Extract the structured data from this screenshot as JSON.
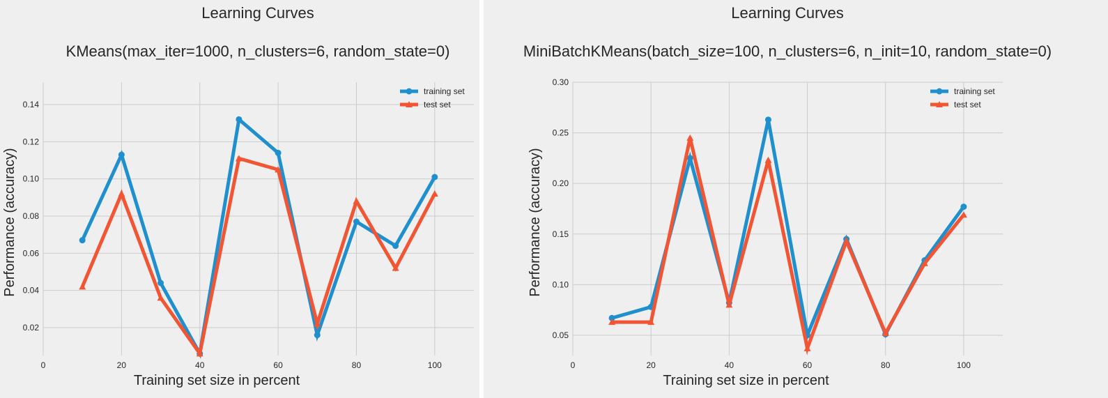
{
  "colors": {
    "panel_bg": "#efefef",
    "grid": "#cbcbcb",
    "text": "#262626",
    "training": "#1f8fce",
    "test": "#f25533"
  },
  "chart_data": [
    {
      "type": "line",
      "title": "Learning Curves",
      "subtitle": "KMeans(max_iter=1000, n_clusters=6, random_state=0)",
      "xlabel": "Training set size in percent",
      "ylabel": "Performance (accuracy)",
      "xlim": [
        0,
        110
      ],
      "ylim": [
        0.005,
        0.152
      ],
      "xticks": [
        0,
        20,
        40,
        60,
        80,
        100
      ],
      "yticks": [
        0.02,
        0.04,
        0.06,
        0.08,
        0.1,
        0.12,
        0.14
      ],
      "ytick_labels": [
        "0.02",
        "0.04",
        "0.06",
        "0.08",
        "0.10",
        "0.12",
        "0.14"
      ],
      "grid": true,
      "legend": "top-right",
      "x": [
        10,
        20,
        30,
        40,
        50,
        60,
        70,
        80,
        90,
        100
      ],
      "series": [
        {
          "name": "training set",
          "color": "#1f8fce",
          "marker": "circle",
          "values": [
            0.067,
            0.113,
            0.044,
            0.006,
            0.132,
            0.114,
            0.016,
            0.077,
            0.064,
            0.101
          ]
        },
        {
          "name": "test set",
          "color": "#f25533",
          "marker": "triangle",
          "values": [
            0.042,
            0.092,
            0.036,
            0.006,
            0.111,
            0.105,
            0.022,
            0.088,
            0.052,
            0.092
          ]
        }
      ]
    },
    {
      "type": "line",
      "title": "Learning Curves",
      "subtitle": "MiniBatchKMeans(batch_size=100, n_clusters=6, n_init=10, random_state=0)",
      "xlabel": "Training set size in percent",
      "ylabel": "Performance (accuracy)",
      "xlim": [
        0,
        110
      ],
      "ylim": [
        0.03,
        0.3
      ],
      "xticks": [
        0,
        20,
        40,
        60,
        80,
        100
      ],
      "yticks": [
        0.05,
        0.1,
        0.15,
        0.2,
        0.25,
        0.3
      ],
      "ytick_labels": [
        "0.05",
        "0.10",
        "0.15",
        "0.20",
        "0.25",
        "0.30"
      ],
      "grid": true,
      "legend": "top-right",
      "x": [
        10,
        20,
        30,
        40,
        50,
        60,
        70,
        80,
        90,
        100
      ],
      "series": [
        {
          "name": "training set",
          "color": "#1f8fce",
          "marker": "circle",
          "values": [
            0.067,
            0.078,
            0.225,
            0.082,
            0.263,
            0.05,
            0.145,
            0.051,
            0.124,
            0.177
          ]
        },
        {
          "name": "test set",
          "color": "#f25533",
          "marker": "triangle",
          "values": [
            0.063,
            0.063,
            0.245,
            0.08,
            0.223,
            0.037,
            0.143,
            0.052,
            0.121,
            0.169
          ]
        }
      ]
    }
  ]
}
